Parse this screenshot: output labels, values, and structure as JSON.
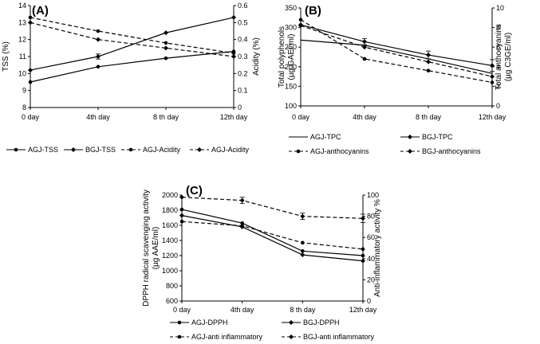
{
  "chart_data": [
    {
      "type": "line",
      "panel": "(A)",
      "categories": [
        "0 day",
        "4th day",
        "8 th day",
        "12th day"
      ],
      "ylabel": "TSS (%)",
      "ylim": [
        8,
        14
      ],
      "yticks": [
        "8",
        "9",
        "10",
        "11",
        "12",
        "13",
        "14"
      ],
      "y2label": "Acidity (%)",
      "y2lim": [
        0,
        0.6
      ],
      "y2ticks": [
        "0",
        "0.1",
        "0.2",
        "0.3",
        "0.4",
        "0.5",
        "0.6"
      ],
      "series": [
        {
          "name": "AGJ-TSS",
          "axis": "left",
          "dashed": false,
          "marker": "circle",
          "values": [
            9.5,
            10.4,
            10.9,
            11.3
          ],
          "errors": [
            0,
            0,
            0,
            0
          ]
        },
        {
          "name": "BGJ-TSS",
          "axis": "left",
          "dashed": false,
          "marker": "diamond",
          "values": [
            10.2,
            11.0,
            12.4,
            13.3
          ],
          "errors": [
            0,
            0.15,
            0,
            0
          ]
        },
        {
          "name": "AGJ-Acidity",
          "axis": "right",
          "dashed": true,
          "marker": "circle",
          "values": [
            0.53,
            0.45,
            0.38,
            0.32
          ],
          "errors": [
            0,
            0,
            0,
            0
          ]
        },
        {
          "name": "AGJ-Acidity",
          "axis": "right",
          "dashed": true,
          "marker": "diamond",
          "values": [
            0.5,
            0.4,
            0.35,
            0.3
          ],
          "errors": [
            0,
            0,
            0,
            0
          ]
        }
      ]
    },
    {
      "type": "line",
      "panel": "(B)",
      "categories": [
        "0 day",
        "4th day",
        "8 th day",
        "12th day"
      ],
      "ylabel": "Total polyphenols",
      "ylabel2": "(µg GAE/ ml)",
      "ylim": [
        100,
        350
      ],
      "yticks": [
        "100",
        "150",
        "200",
        "250",
        "300",
        "350"
      ],
      "y2label": "Total anthocyanins",
      "y2label2": "(µg C3GE/ml)",
      "y2lim": [
        0,
        10
      ],
      "y2ticks": [
        "0",
        "2",
        "4",
        "6",
        "8",
        "10"
      ],
      "series": [
        {
          "name": "AGJ-TPC",
          "axis": "left",
          "dashed": false,
          "marker": "none",
          "values": [
            268,
            255,
            220,
            183
          ],
          "errors": [
            0,
            0,
            0,
            0
          ]
        },
        {
          "name": "BGJ-TPC",
          "axis": "left",
          "dashed": false,
          "marker": "diamond",
          "values": [
            307,
            264,
            230,
            203
          ],
          "errors": [
            0,
            8,
            10,
            15
          ]
        },
        {
          "name": "AGJ-anthocyanins",
          "axis": "right",
          "dashed": true,
          "marker": "circle",
          "values": [
            8.8,
            4.8,
            3.6,
            2.4
          ],
          "errors": [
            0,
            0,
            0,
            0
          ]
        },
        {
          "name": "BGJ-anthocyanins",
          "axis": "right",
          "dashed": true,
          "marker": "diamond",
          "values": [
            8.2,
            6.0,
            4.5,
            3.0
          ],
          "errors": [
            0,
            0,
            0,
            0
          ]
        }
      ]
    },
    {
      "type": "line",
      "panel": "(C)",
      "categories": [
        "0 day",
        "4th day",
        "8 th day",
        "12th day"
      ],
      "ylabel": "DPPH radical scavenging activity",
      "ylabel2": "(µg AAE/ml)",
      "ylim": [
        600,
        2000
      ],
      "yticks": [
        "600",
        "800",
        "1000",
        "1200",
        "1400",
        "1600",
        "1800",
        "2000"
      ],
      "y2label": "Anti-inflammatory activity %",
      "y2lim": [
        0,
        100
      ],
      "y2ticks": [
        "0",
        "20",
        "40",
        "60",
        "80",
        "100"
      ],
      "series": [
        {
          "name": "AGJ-DPPH",
          "axis": "left",
          "dashed": false,
          "marker": "circle",
          "values": [
            1810,
            1630,
            1260,
            1200
          ],
          "errors": [
            0,
            0,
            0,
            0
          ]
        },
        {
          "name": "BGJ-DPPH",
          "axis": "left",
          "dashed": false,
          "marker": "diamond",
          "values": [
            1730,
            1580,
            1210,
            1130
          ],
          "errors": [
            0,
            0,
            0,
            0
          ]
        },
        {
          "name": "AGJ-anti inflammatory",
          "axis": "right",
          "dashed": true,
          "marker": "circle",
          "values": [
            75,
            71,
            55,
            49
          ],
          "errors": [
            0,
            0,
            0,
            0
          ]
        },
        {
          "name": "BGJ-anti inflammatory",
          "axis": "right",
          "dashed": true,
          "marker": "diamond",
          "values": [
            98,
            95,
            80,
            78
          ],
          "errors": [
            0,
            3,
            3,
            4
          ]
        }
      ]
    }
  ]
}
